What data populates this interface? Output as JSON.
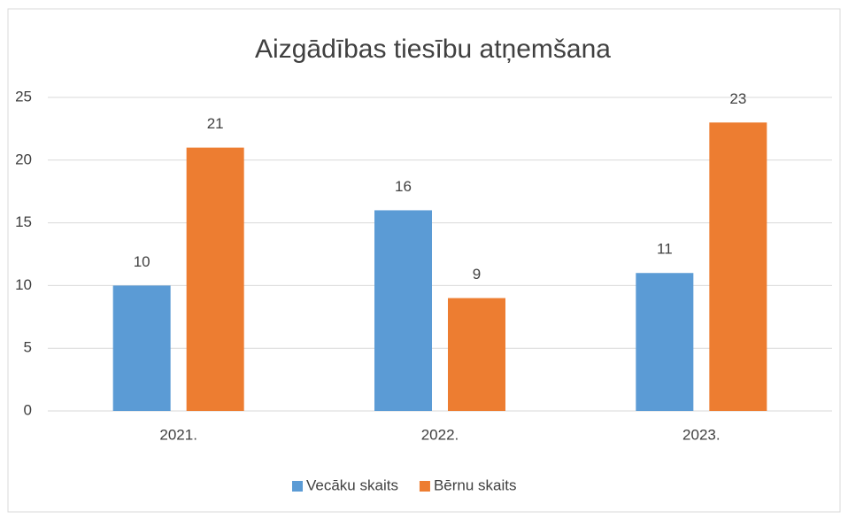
{
  "chart_data": {
    "type": "bar",
    "title": "Aizgādības tiesību atņemšana",
    "categories": [
      "2021.",
      "2022.",
      "2023."
    ],
    "series": [
      {
        "name": "Vecāku skaits",
        "color": "#5b9bd5",
        "values": [
          10,
          16,
          11
        ]
      },
      {
        "name": "Bērnu skaits",
        "color": "#ed7d31",
        "values": [
          21,
          9,
          23
        ]
      }
    ],
    "ylim": [
      0,
      25
    ],
    "yticks": [
      0,
      5,
      10,
      15,
      20,
      25
    ],
    "grid": true,
    "legend": "bottom"
  }
}
